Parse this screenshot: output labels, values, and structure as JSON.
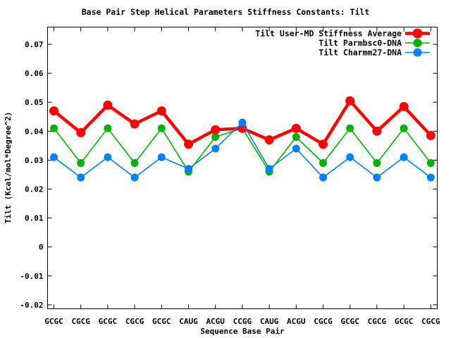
{
  "chart_data": {
    "type": "line",
    "title": "Base Pair Step Helical Parameters Stiffness Constants: Tilt",
    "xlabel": "Sequence Base Pair",
    "ylabel": "Tilt (Kcal/mol*Degree^2)",
    "categories": [
      "GCGC",
      "CGCG",
      "GCGC",
      "CGCG",
      "GCGC",
      "CAUG",
      "ACGU",
      "CCGG",
      "CAUG",
      "ACGU",
      "CGCG",
      "GCGC",
      "CGCG",
      "GCGC",
      "CGCG"
    ],
    "series": [
      {
        "name": "Tilt User-MD Stiffness Average",
        "color": "#ff0000",
        "marker": "filled-circle",
        "values": [
          0.047,
          0.0395,
          0.049,
          0.0425,
          0.047,
          0.0355,
          0.0405,
          0.041,
          0.037,
          0.041,
          0.0355,
          0.0505,
          0.04,
          0.0485,
          0.0385
        ]
      },
      {
        "name": "Tilt Parmbsc0-DNA",
        "color": "#00b000",
        "marker": "filled-circle",
        "values": [
          0.041,
          0.029,
          0.041,
          0.029,
          0.041,
          0.026,
          0.038,
          0.041,
          0.026,
          0.038,
          0.029,
          0.041,
          0.029,
          0.041,
          0.029
        ]
      },
      {
        "name": "Tilt Charmm27-DNA",
        "color": "#0080ff",
        "marker": "filled-circle",
        "values": [
          0.031,
          0.024,
          0.031,
          0.024,
          0.031,
          0.027,
          0.034,
          0.043,
          0.027,
          0.034,
          0.024,
          0.031,
          0.024,
          0.031,
          0.024
        ]
      }
    ],
    "yticks": {
      "values": [
        0.07,
        0.06,
        0.05,
        0.04,
        0.03,
        0.02,
        0.01,
        0,
        -0.01,
        -0.02
      ],
      "labels": [
        "0.07",
        "0.06",
        "0.05",
        "0.04",
        "0.03",
        "0.02",
        "0.01",
        "0",
        "-0.01",
        "-0.02"
      ]
    },
    "ylim": [
      -0.0215,
      0.076
    ],
    "legend_position": "top-right-inside",
    "grid": false,
    "background_color": "#ffffff",
    "text_color": "#000000",
    "border_color": "#000000"
  }
}
